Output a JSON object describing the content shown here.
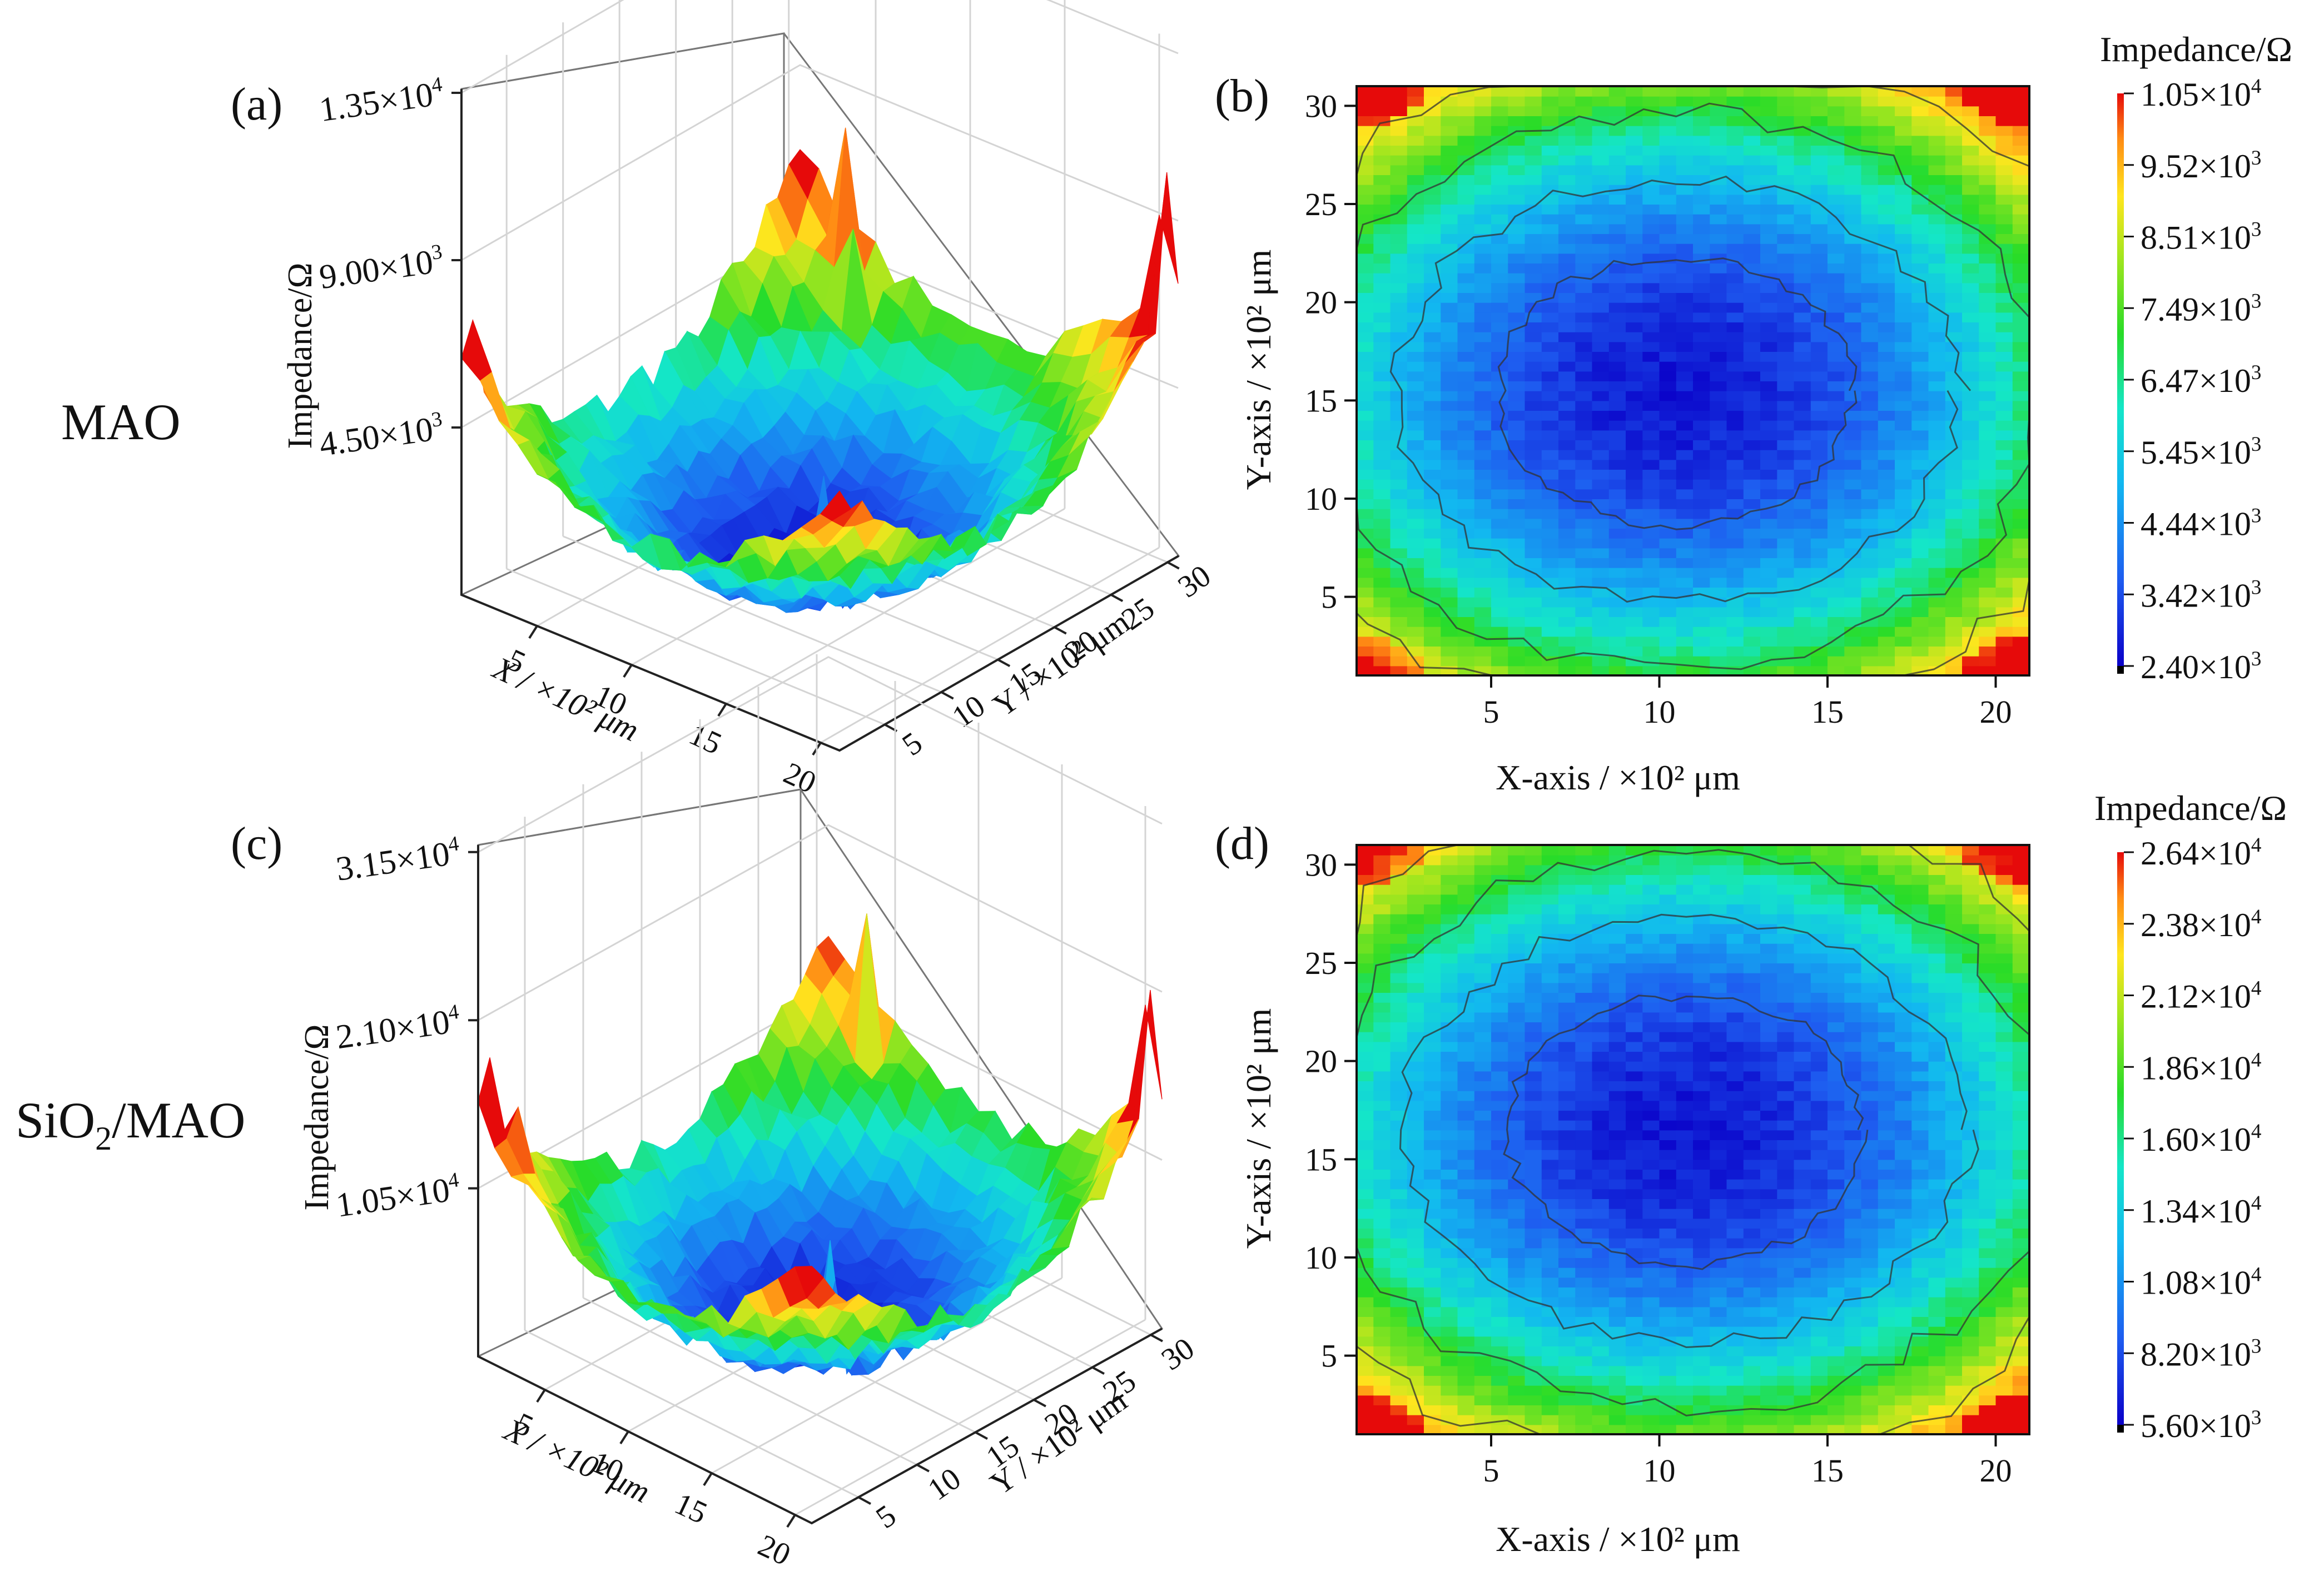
{
  "figure": {
    "row_labels": {
      "top": "MAO",
      "bottom_main": "SiO",
      "bottom_sub": "2",
      "bottom_tail": "/MAO"
    }
  },
  "chart_data": [
    {
      "id": "a",
      "panel_label": "(a)",
      "type": "surface3d",
      "zlabel": "Impedance/Ω",
      "xlabel": "X / ×10² μm",
      "ylabel": "Y / ×10² μm",
      "ztick_labels": [
        {
          "mant": "4.50×10",
          "exp": "3"
        },
        {
          "mant": "9.00×10",
          "exp": "3"
        },
        {
          "mant": "1.35×10",
          "exp": "4"
        }
      ],
      "z_ticks": [
        4500,
        9000,
        13500
      ],
      "xtick_labels": [
        "5",
        "10",
        "15",
        "20"
      ],
      "ytick_labels": [
        "5",
        "10",
        "15",
        "20",
        "25",
        "30"
      ],
      "x_range": [
        1,
        21
      ],
      "y_range": [
        1,
        31
      ],
      "z_min": 2400,
      "z_max": 10500
    },
    {
      "id": "b",
      "panel_label": "(b)",
      "type": "heatmap",
      "xlabel": "X-axis / ×10² μm",
      "ylabel": "Y-axis / ×10² μm",
      "xtick_labels": [
        "5",
        "10",
        "15",
        "20"
      ],
      "ytick_labels": [
        "5",
        "10",
        "15",
        "20",
        "25",
        "30"
      ],
      "x_ticks": [
        5,
        10,
        15,
        20
      ],
      "y_ticks": [
        5,
        10,
        15,
        20,
        25,
        30
      ],
      "xlim": [
        1,
        21
      ],
      "ylim": [
        1,
        31
      ],
      "center": [
        10.5,
        15.5
      ],
      "colorbar": {
        "title": "Impedance/Ω",
        "min": 2400,
        "max": 10500,
        "labels": [
          {
            "mant": "1.05×10",
            "exp": "4"
          },
          {
            "mant": "9.52×10",
            "exp": "3"
          },
          {
            "mant": "8.51×10",
            "exp": "3"
          },
          {
            "mant": "7.49×10",
            "exp": "3"
          },
          {
            "mant": "6.47×10",
            "exp": "3"
          },
          {
            "mant": "5.45×10",
            "exp": "3"
          },
          {
            "mant": "4.44×10",
            "exp": "3"
          },
          {
            "mant": "3.42×10",
            "exp": "3"
          },
          {
            "mant": "2.40×10",
            "exp": "3"
          }
        ]
      }
    },
    {
      "id": "c",
      "panel_label": "(c)",
      "type": "surface3d",
      "zlabel": "Impedance/Ω",
      "xlabel": "X / ×10² μm",
      "ylabel": "Y / ×10² μm",
      "ztick_labels": [
        {
          "mant": "1.05×10",
          "exp": "4"
        },
        {
          "mant": "2.10×10",
          "exp": "4"
        },
        {
          "mant": "3.15×10",
          "exp": "4"
        }
      ],
      "z_ticks": [
        10500,
        21000,
        31500
      ],
      "xtick_labels": [
        "5",
        "10",
        "15",
        "20"
      ],
      "ytick_labels": [
        "5",
        "10",
        "15",
        "20",
        "25",
        "30"
      ],
      "x_range": [
        1,
        21
      ],
      "y_range": [
        1,
        31
      ],
      "z_min": 5600,
      "z_max": 26400
    },
    {
      "id": "d",
      "panel_label": "(d)",
      "type": "heatmap",
      "xlabel": "X-axis / ×10² μm",
      "ylabel": "Y-axis / ×10² μm",
      "xtick_labels": [
        "5",
        "10",
        "15",
        "20"
      ],
      "ytick_labels": [
        "5",
        "10",
        "15",
        "20",
        "25",
        "30"
      ],
      "x_ticks": [
        5,
        10,
        15,
        20
      ],
      "y_ticks": [
        5,
        10,
        15,
        20,
        25,
        30
      ],
      "xlim": [
        1,
        21
      ],
      "ylim": [
        1,
        31
      ],
      "center": [
        10.8,
        16.5
      ],
      "colorbar": {
        "title": "Impedance/Ω",
        "min": 5600,
        "max": 26400,
        "labels": [
          {
            "mant": "2.64×10",
            "exp": "4"
          },
          {
            "mant": "2.38×10",
            "exp": "4"
          },
          {
            "mant": "2.12×10",
            "exp": "4"
          },
          {
            "mant": "1.86×10",
            "exp": "4"
          },
          {
            "mant": "1.60×10",
            "exp": "4"
          },
          {
            "mant": "1.34×10",
            "exp": "4"
          },
          {
            "mant": "1.08×10",
            "exp": "4"
          },
          {
            "mant": "8.20×10",
            "exp": "3"
          },
          {
            "mant": "5.60×10",
            "exp": "3"
          }
        ]
      }
    }
  ]
}
